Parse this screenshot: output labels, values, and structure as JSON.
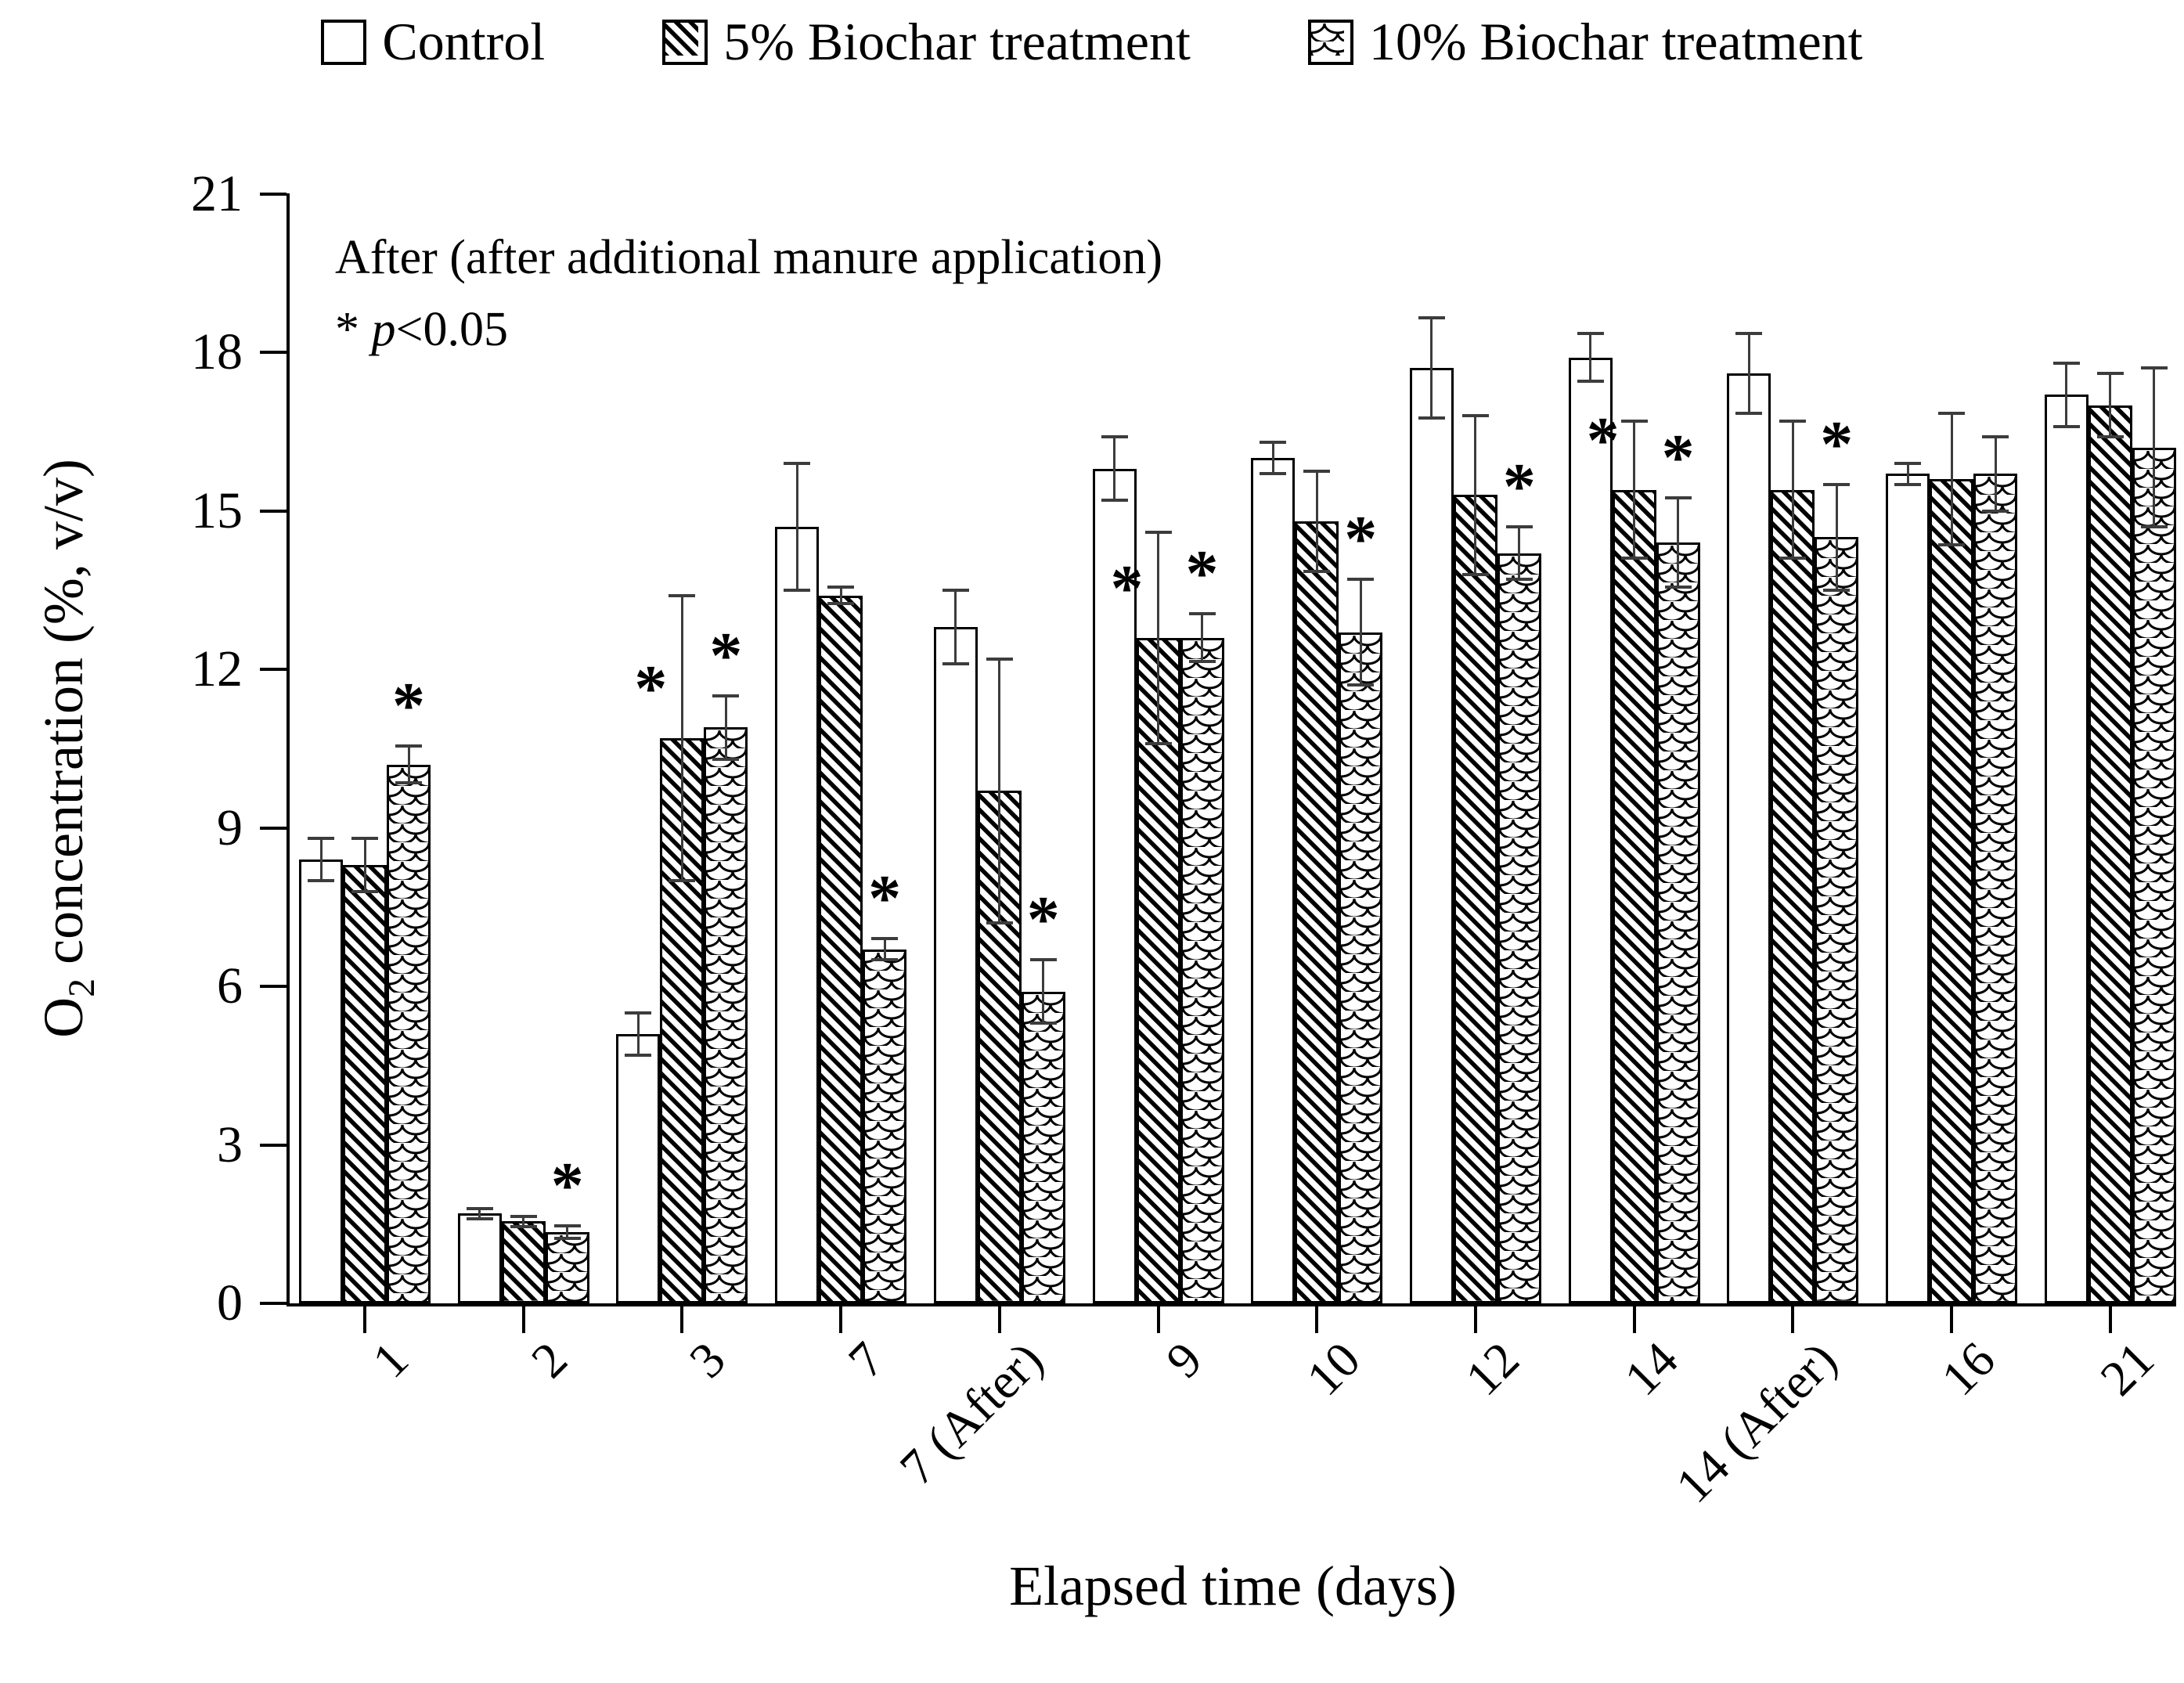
{
  "legend": {
    "items": [
      {
        "pattern": "plain",
        "series_index": 0
      },
      {
        "pattern": "hatch",
        "series_index": 1
      },
      {
        "pattern": "scales",
        "series_index": 2
      }
    ]
  },
  "annotation": {
    "line1": "After (after additional manure application)",
    "star": "* ",
    "p": "p",
    "rest": "<0.05"
  },
  "y_axis": {
    "title_main": "O",
    "title_sub": "2",
    "title_rest": " concentration (%, v/v)",
    "ticks": [
      "0",
      "3",
      "6",
      "9",
      "12",
      "15",
      "18",
      "21"
    ],
    "min": 0,
    "max": 21
  },
  "x_axis": {
    "title": "Elapsed time (days)"
  },
  "chart_data": {
    "type": "bar",
    "title": "",
    "xlabel": "Elapsed time (days)",
    "ylabel": "O2 concentration (%, v/v)",
    "ylim": [
      0,
      21
    ],
    "ytick_step": 3,
    "grid": false,
    "legend_position": "top",
    "error_bars": true,
    "sig_note": "* p<0.05",
    "annotation": "After (after additional manure application)",
    "categories": [
      "1",
      "2",
      "3",
      "7",
      "7 (After)",
      "9",
      "10",
      "12",
      "14",
      "14 (After)",
      "16",
      "21"
    ],
    "series": [
      {
        "name": "Control",
        "pattern": "plain",
        "values": [
          8.4,
          1.7,
          5.1,
          14.7,
          12.8,
          15.8,
          16.0,
          17.7,
          17.9,
          17.6,
          15.7,
          17.2
        ],
        "errors": [
          0.4,
          0.1,
          0.4,
          1.2,
          0.7,
          0.6,
          0.3,
          0.95,
          0.45,
          0.75,
          0.2,
          0.6
        ],
        "sig": [
          false,
          false,
          false,
          false,
          false,
          false,
          false,
          false,
          false,
          false,
          false,
          false
        ]
      },
      {
        "name": "5% Biochar treatment",
        "pattern": "hatch",
        "values": [
          8.3,
          1.55,
          10.7,
          13.4,
          9.7,
          12.6,
          14.8,
          15.3,
          15.4,
          15.4,
          15.6,
          17.0
        ],
        "errors": [
          0.5,
          0.1,
          2.7,
          0.15,
          2.5,
          2.0,
          0.95,
          1.5,
          1.3,
          1.3,
          1.25,
          0.6
        ],
        "sig": [
          false,
          false,
          true,
          false,
          false,
          true,
          false,
          false,
          true,
          false,
          false,
          false
        ]
      },
      {
        "name": "10% Biochar treatment",
        "pattern": "scales",
        "values": [
          10.2,
          1.35,
          10.9,
          6.7,
          5.9,
          12.6,
          12.7,
          14.2,
          14.4,
          14.5,
          15.7,
          16.2
        ],
        "errors": [
          0.35,
          0.12,
          0.6,
          0.2,
          0.6,
          0.45,
          1.0,
          0.5,
          0.85,
          1.0,
          0.7,
          1.5
        ],
        "sig": [
          true,
          true,
          true,
          true,
          true,
          true,
          true,
          true,
          true,
          true,
          false,
          false
        ]
      }
    ]
  },
  "colors": {
    "foreground": "#000000",
    "background": "#ffffff",
    "error_bar": "#3c3c3c"
  }
}
